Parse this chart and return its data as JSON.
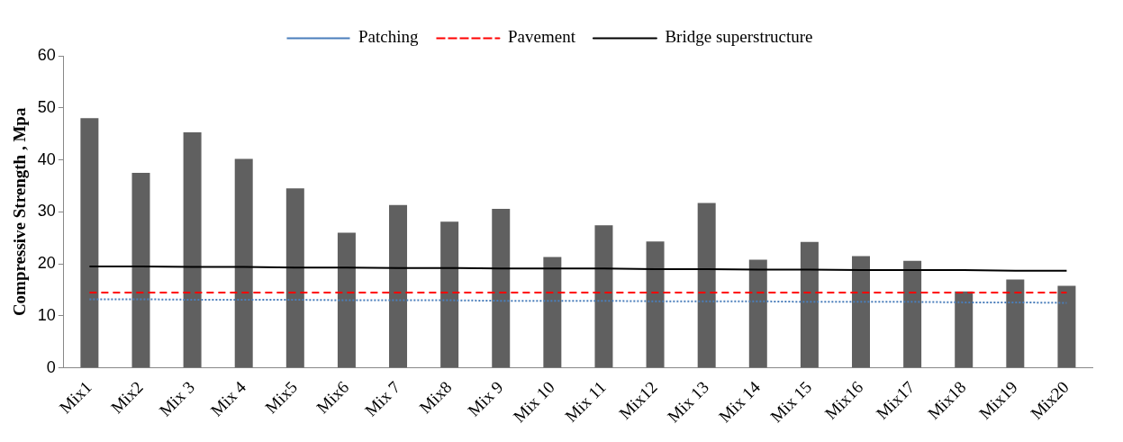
{
  "chart_data": {
    "type": "bar",
    "ylabel": "Compressive Strength , Mpa",
    "categories": [
      "Mix1",
      "Mix2",
      "Mix 3",
      "Mix 4",
      "Mix5",
      "Mix6",
      "Mix 7",
      "Mix8",
      "Mix 9",
      "Mix 10",
      "Mix 11",
      "Mix12",
      "Mix 13",
      "Mix 14",
      "Mix 15",
      "Mix16",
      "Mix17",
      "Mix18",
      "Mix19",
      "Mix20"
    ],
    "series": [
      {
        "color": "#606060",
        "values": [
          48,
          37.5,
          45.3,
          40.2,
          34.5,
          26,
          31.3,
          28.1,
          30.6,
          21.3,
          27.4,
          24.3,
          31.7,
          20.8,
          24.2,
          21.5,
          20.6,
          14.7,
          17,
          15.8
        ]
      },
      {
        "type": "line",
        "name": "Patching",
        "color": "#4a7ebb",
        "line_style": "dotted",
        "values": [
          13.2,
          13.2,
          13.1,
          13.1,
          13.1,
          13.0,
          13.0,
          13.0,
          12.9,
          12.9,
          12.9,
          12.8,
          12.8,
          12.8,
          12.7,
          12.7,
          12.7,
          12.6,
          12.6,
          12.5
        ]
      },
      {
        "type": "line",
        "name": "Pavement",
        "color": "#ff0000",
        "line_style": "dashed",
        "values": [
          14.5,
          14.5,
          14.5,
          14.5,
          14.5,
          14.5,
          14.5,
          14.5,
          14.5,
          14.5,
          14.5,
          14.5,
          14.5,
          14.5,
          14.5,
          14.5,
          14.5,
          14.5,
          14.5,
          14.5
        ]
      },
      {
        "type": "line",
        "name": "Bridge superstructure",
        "color": "#000000",
        "line_style": "solid",
        "values": [
          19.5,
          19.5,
          19.4,
          19.4,
          19.3,
          19.3,
          19.2,
          19.2,
          19.1,
          19.1,
          19.1,
          19.0,
          19.0,
          18.9,
          18.9,
          18.8,
          18.8,
          18.8,
          18.7,
          18.7
        ]
      }
    ],
    "ylim": [
      0,
      60
    ],
    "yticks": [
      0,
      10,
      20,
      30,
      40,
      50,
      60
    ],
    "grid": false,
    "legend": "top",
    "marker": "none"
  }
}
